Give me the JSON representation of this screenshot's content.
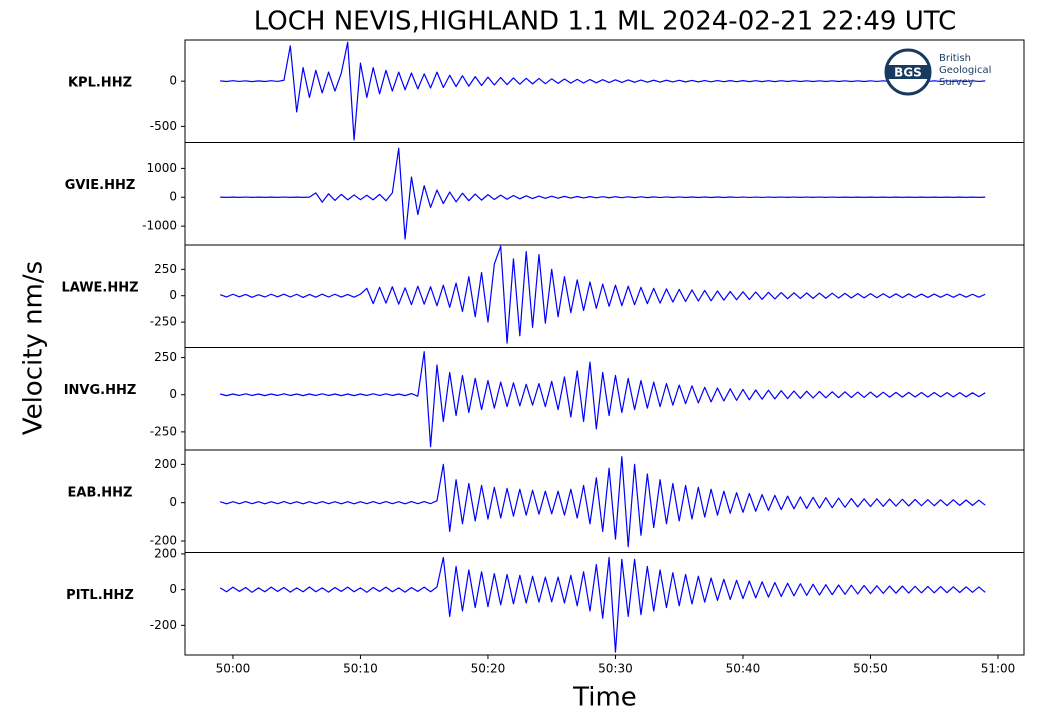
{
  "chart_data": {
    "type": "line",
    "title": "LOCH NEVIS,HIGHLAND 1.1 ML   2024-02-21 22:49 UTC",
    "y_label": "Velocity nm/s",
    "x_label": "Time",
    "logo": {
      "abbr": "BGS",
      "name": [
        "British",
        "Geological",
        "Survey"
      ]
    },
    "xlim": [
      -3.76,
      62.04
    ],
    "xticks": [
      {
        "value": 0,
        "label": "50:00"
      },
      {
        "value": 10,
        "label": "50:10"
      },
      {
        "value": 20,
        "label": "50:20"
      },
      {
        "value": 30,
        "label": "50:30"
      },
      {
        "value": 40,
        "label": "50:40"
      },
      {
        "value": 50,
        "label": "50:50"
      },
      {
        "value": 60,
        "label": "51:00"
      }
    ],
    "x": [
      -1,
      -0.5,
      0,
      0.5,
      1,
      1.5,
      2,
      2.5,
      3,
      3.5,
      4,
      4.5,
      5,
      5.5,
      6,
      6.5,
      7,
      7.5,
      8,
      8.5,
      9,
      9.5,
      10,
      10.5,
      11,
      11.5,
      12,
      12.5,
      13,
      13.5,
      14,
      14.5,
      15,
      15.5,
      16,
      16.5,
      17,
      17.5,
      18,
      18.5,
      19,
      19.5,
      20,
      20.5,
      21,
      21.5,
      22,
      22.5,
      23,
      23.5,
      24,
      24.5,
      25,
      25.5,
      26,
      26.5,
      27,
      27.5,
      28,
      28.5,
      29,
      29.5,
      30,
      30.5,
      31,
      31.5,
      32,
      32.5,
      33,
      33.5,
      34,
      34.5,
      35,
      35.5,
      36,
      36.5,
      37,
      37.5,
      38,
      38.5,
      39,
      39.5,
      40,
      40.5,
      41,
      41.5,
      42,
      42.5,
      43,
      43.5,
      44,
      44.5,
      45,
      45.5,
      46,
      46.5,
      47,
      47.5,
      48,
      48.5,
      49,
      49.5,
      50,
      50.5,
      51,
      51.5,
      52,
      52.5,
      53,
      53.5,
      54,
      54.5,
      55,
      55.5,
      56,
      56.5,
      57,
      57.5,
      58,
      58.5,
      59
    ],
    "panels": [
      {
        "label": "KPL.HHZ",
        "color": "#0000ff",
        "ylim": [
          -678,
          455
        ],
        "yticks": [
          -500,
          0
        ],
        "values": [
          3,
          -4,
          5,
          -3,
          4,
          -5,
          3,
          -4,
          5,
          -3,
          10,
          390,
          -340,
          150,
          -180,
          120,
          -130,
          100,
          -110,
          90,
          430,
          -650,
          200,
          -180,
          150,
          -140,
          120,
          -110,
          100,
          -95,
          90,
          -85,
          80,
          -75,
          100,
          -70,
          65,
          -60,
          60,
          -55,
          50,
          -48,
          45,
          -42,
          40,
          -38,
          36,
          -34,
          32,
          -30,
          30,
          -28,
          26,
          -25,
          24,
          -22,
          20,
          -20,
          18,
          -18,
          16,
          -15,
          15,
          -14,
          13,
          -12,
          12,
          -11,
          10,
          -10,
          10,
          -9,
          9,
          -8,
          8,
          -8,
          7,
          -7,
          7,
          -6,
          6,
          -6,
          6,
          -5,
          5,
          -5,
          5,
          -5,
          5,
          -4,
          5,
          -4,
          4,
          -4,
          4,
          -4,
          4,
          -4,
          4,
          -4,
          4,
          -4,
          4,
          -3,
          4,
          -3,
          4,
          -3,
          4,
          -3,
          4,
          -3,
          4,
          -3,
          4,
          -3,
          4,
          -3,
          4,
          -3,
          3
        ]
      },
      {
        "label": "GVIE.HHZ",
        "color": "#0000ff",
        "ylim": [
          -1655,
          1897
        ],
        "yticks": [
          -1000,
          0,
          1000
        ],
        "values": [
          5,
          -6,
          5,
          -5,
          6,
          -5,
          5,
          -6,
          5,
          -5,
          6,
          -5,
          5,
          -6,
          5,
          150,
          -170,
          120,
          -110,
          100,
          -90,
          80,
          -85,
          70,
          -90,
          100,
          -120,
          150,
          1700,
          -1450,
          700,
          -600,
          400,
          -350,
          250,
          -220,
          180,
          -160,
          140,
          -120,
          110,
          -100,
          90,
          -80,
          75,
          -70,
          60,
          -55,
          50,
          -45,
          40,
          -38,
          35,
          -32,
          30,
          -28,
          26,
          -24,
          22,
          -20,
          20,
          -18,
          18,
          -16,
          15,
          -14,
          14,
          -13,
          12,
          -12,
          11,
          -10,
          10,
          -10,
          9,
          -9,
          9,
          -8,
          8,
          -8,
          8,
          -7,
          7,
          -7,
          7,
          -7,
          6,
          -6,
          6,
          -6,
          6,
          -6,
          6,
          -5,
          6,
          -5,
          6,
          -5,
          5,
          -5,
          5,
          -5,
          5,
          -5,
          5,
          -5,
          5,
          -5,
          5,
          -5,
          5,
          -5,
          5,
          -5,
          5,
          -5,
          5,
          -5,
          5,
          -5,
          5
        ]
      },
      {
        "label": "LAWE.HHZ",
        "color": "#0000ff",
        "ylim": [
          -491,
          481
        ],
        "yticks": [
          -250,
          0,
          250
        ],
        "values": [
          10,
          -12,
          14,
          -10,
          12,
          -15,
          10,
          -12,
          14,
          -10,
          15,
          -12,
          14,
          -16,
          12,
          -14,
          15,
          -12,
          14,
          -13,
          12,
          -14,
          15,
          70,
          -75,
          80,
          -70,
          85,
          -80,
          75,
          -85,
          90,
          -80,
          85,
          -95,
          100,
          -110,
          120,
          -150,
          180,
          -200,
          220,
          -250,
          300,
          470,
          -450,
          350,
          -380,
          420,
          -300,
          390,
          -260,
          250,
          -200,
          180,
          -160,
          150,
          -140,
          130,
          -120,
          110,
          -100,
          100,
          -95,
          90,
          -85,
          80,
          -75,
          70,
          -70,
          65,
          -60,
          60,
          -55,
          55,
          -50,
          50,
          -48,
          45,
          -42,
          40,
          -38,
          38,
          -36,
          35,
          -34,
          32,
          -30,
          30,
          -28,
          28,
          -26,
          26,
          -25,
          25,
          -24,
          24,
          -22,
          22,
          -22,
          20,
          -20,
          20,
          -19,
          19,
          -18,
          18,
          -18,
          17,
          -17,
          16,
          -16,
          16,
          -15,
          15,
          -15,
          15,
          -14,
          14,
          -14,
          14
        ]
      },
      {
        "label": "INVG.HHZ",
        "color": "#0000ff",
        "ylim": [
          -372,
          318
        ],
        "yticks": [
          -250,
          0,
          250
        ],
        "values": [
          5,
          -6,
          5,
          -5,
          6,
          -5,
          5,
          -6,
          5,
          -5,
          6,
          -5,
          5,
          -6,
          5,
          -5,
          6,
          -5,
          5,
          -6,
          5,
          -6,
          5,
          -5,
          6,
          -5,
          6,
          -5,
          5,
          -6,
          8,
          -10,
          290,
          -350,
          200,
          -180,
          150,
          -140,
          130,
          -120,
          110,
          -100,
          95,
          -90,
          85,
          -80,
          80,
          -75,
          70,
          -70,
          75,
          -80,
          90,
          -100,
          120,
          -150,
          160,
          -180,
          220,
          -230,
          150,
          -140,
          130,
          -120,
          110,
          -100,
          95,
          -90,
          85,
          -80,
          75,
          -70,
          65,
          -60,
          60,
          -55,
          50,
          -48,
          45,
          -42,
          40,
          -38,
          36,
          -34,
          32,
          -30,
          30,
          -28,
          28,
          -26,
          25,
          -24,
          24,
          -22,
          22,
          -21,
          20,
          -20,
          20,
          -19,
          18,
          -18,
          18,
          -17,
          17,
          -16,
          16,
          -16,
          16,
          -15,
          15,
          -15,
          15,
          -14,
          14,
          -14,
          14,
          -14,
          13,
          -13,
          13
        ]
      },
      {
        "label": "EAB.HHZ",
        "color": "#0000ff",
        "ylim": [
          -260,
          275
        ],
        "yticks": [
          -200,
          0,
          200
        ],
        "values": [
          5,
          -6,
          5,
          -5,
          6,
          -5,
          5,
          -6,
          5,
          -5,
          6,
          -5,
          5,
          -6,
          5,
          -5,
          6,
          -5,
          5,
          -6,
          5,
          -6,
          5,
          -5,
          6,
          -5,
          6,
          -5,
          5,
          -6,
          6,
          -5,
          6,
          -5,
          10,
          200,
          -150,
          120,
          -110,
          100,
          -95,
          90,
          -85,
          80,
          -80,
          75,
          -70,
          70,
          -65,
          65,
          -60,
          60,
          -58,
          60,
          -65,
          70,
          -80,
          90,
          -110,
          130,
          -150,
          180,
          -190,
          240,
          -230,
          200,
          -170,
          150,
          -130,
          120,
          -110,
          100,
          -95,
          90,
          -85,
          80,
          -75,
          70,
          -65,
          60,
          -55,
          52,
          -50,
          48,
          -45,
          42,
          -40,
          38,
          -36,
          34,
          -32,
          30,
          -30,
          28,
          -28,
          26,
          -26,
          24,
          -24,
          22,
          -22,
          20,
          -20,
          20,
          -19,
          19,
          -18,
          18,
          -17,
          17,
          -16,
          16,
          -16,
          15,
          -15,
          15,
          -14,
          14,
          -14,
          13,
          -13
        ]
      },
      {
        "label": "PITL.HHZ",
        "color": "#0000ff",
        "ylim": [
          -366,
          208
        ],
        "yticks": [
          -200,
          0,
          200
        ],
        "values": [
          10,
          -12,
          14,
          -10,
          12,
          -15,
          10,
          -12,
          14,
          -10,
          12,
          -14,
          10,
          -12,
          15,
          -12,
          10,
          -14,
          12,
          -10,
          14,
          -12,
          10,
          -15,
          12,
          -10,
          14,
          -12,
          10,
          -14,
          12,
          -10,
          14,
          -12,
          15,
          180,
          -150,
          130,
          -120,
          110,
          -100,
          100,
          -95,
          90,
          -85,
          85,
          -80,
          80,
          -75,
          75,
          -70,
          70,
          -68,
          70,
          -75,
          80,
          -90,
          100,
          -120,
          140,
          -160,
          180,
          -350,
          170,
          -150,
          170,
          -140,
          130,
          -120,
          110,
          -100,
          95,
          -90,
          85,
          -80,
          75,
          -70,
          65,
          -60,
          58,
          -55,
          52,
          -50,
          48,
          -46,
          44,
          -42,
          40,
          -38,
          36,
          -35,
          33,
          -32,
          30,
          -30,
          28,
          -28,
          26,
          -26,
          25,
          -24,
          23,
          -22,
          22,
          -21,
          20,
          -20,
          20,
          -19,
          19,
          -18,
          18,
          -18,
          17,
          -17,
          16,
          -16,
          16,
          -15,
          15,
          -15
        ]
      }
    ]
  }
}
